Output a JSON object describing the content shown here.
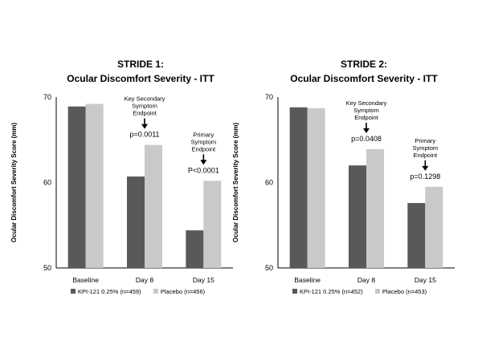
{
  "chart_data": [
    {
      "type": "bar",
      "title_line1": "STRIDE 1:",
      "title_line2": "Ocular Discomfort Severity - ITT",
      "ylabel": "Ocular Discomfort Severity Score (mm)",
      "xlabel": "",
      "ylim": [
        50,
        70
      ],
      "yticks": [
        50,
        60,
        70
      ],
      "categories": [
        "Baseline",
        "Day 8",
        "Day 15"
      ],
      "series": [
        {
          "name": "KPI-121 0.25% (n=459)",
          "color": "#595959",
          "values": [
            68.9,
            60.7,
            54.4
          ]
        },
        {
          "name": "Placebo (n=456)",
          "color": "#c9c9c9",
          "values": [
            69.2,
            64.4,
            60.2
          ]
        }
      ],
      "annotations": [
        {
          "category_index": 1,
          "lines": [
            "Key Secondary",
            "Symptom",
            "Endpoint"
          ],
          "pvalue": "p=0.0011"
        },
        {
          "category_index": 2,
          "lines": [
            "Primary",
            "Symptom",
            "Endpoint"
          ],
          "pvalue": "P<0.0001"
        }
      ]
    },
    {
      "type": "bar",
      "title_line1": "STRIDE 2:",
      "title_line2": "Ocular Discomfort Severity - ITT",
      "ylabel": "Ocular Discomfort Severity Score (mm)",
      "xlabel": "",
      "ylim": [
        50,
        70
      ],
      "yticks": [
        50,
        60,
        70
      ],
      "categories": [
        "Baseline",
        "Day 8",
        "Day 15"
      ],
      "series": [
        {
          "name": "KPI-121 0.25% (n=452)",
          "color": "#595959",
          "values": [
            68.8,
            62.0,
            57.6
          ]
        },
        {
          "name": "Placebo (n=453)",
          "color": "#c9c9c9",
          "values": [
            68.7,
            63.9,
            59.5
          ]
        }
      ],
      "annotations": [
        {
          "category_index": 1,
          "lines": [
            "Key Secondary",
            "Symptom",
            "Endpoint"
          ],
          "pvalue": "p=0.0408"
        },
        {
          "category_index": 2,
          "lines": [
            "Primary",
            "Symptom",
            "Endpoint"
          ],
          "pvalue": "p=0.1298"
        }
      ]
    }
  ]
}
